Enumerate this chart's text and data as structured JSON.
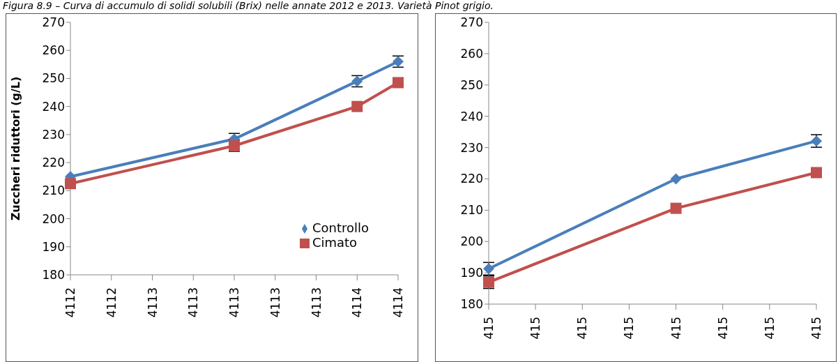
{
  "chart_data": [
    {
      "type": "line",
      "title": "Figura 8.9 – Curva di accumulo di solidi solubili (Brix) nelle annate 2012 e 2013. Varietà Pinot grigio.",
      "ylabel": "Zuccheri riduttori (g/L)",
      "categories": [
        "4112",
        "4112",
        "4113",
        "4113",
        "4113",
        "4113",
        "4113",
        "4114",
        "4114"
      ],
      "ylim": [
        180,
        270
      ],
      "yticks": [
        180,
        190,
        200,
        210,
        220,
        230,
        240,
        250,
        260,
        270
      ],
      "grid": false,
      "legend": "bottom right",
      "series": [
        {
          "name": "Controllo",
          "color": "#4a7ebb",
          "marker": "diamond",
          "values": [
            215,
            null,
            null,
            null,
            228.4,
            null,
            null,
            249,
            256
          ],
          "errors": [
            null,
            null,
            null,
            null,
            2,
            null,
            null,
            2,
            2
          ]
        },
        {
          "name": "Cimato",
          "color": "#c0504d",
          "marker": "square",
          "values": [
            212.5,
            null,
            null,
            null,
            226,
            null,
            null,
            240,
            248.5
          ],
          "errors": [
            null,
            null,
            null,
            null,
            2,
            null,
            null,
            null,
            null
          ]
        }
      ]
    },
    {
      "type": "line",
      "categories": [
        "415",
        "415",
        "415",
        "415",
        "415",
        "415",
        "415",
        "415"
      ],
      "ylim": [
        180,
        270
      ],
      "yticks": [
        180,
        190,
        200,
        210,
        220,
        230,
        240,
        250,
        260,
        270
      ],
      "grid": false,
      "legend": false,
      "series": [
        {
          "color": "#4a7ebb",
          "marker": "diamond",
          "values": [
            191.3,
            null,
            null,
            null,
            220,
            null,
            null,
            232.1
          ],
          "errors": [
            2,
            null,
            null,
            null,
            null,
            null,
            null,
            2
          ]
        },
        {
          "color": "#c0504d",
          "marker": "square",
          "values": [
            187,
            null,
            null,
            null,
            210.6,
            null,
            null,
            222
          ],
          "errors": [
            2,
            null,
            null,
            null,
            null,
            null,
            null,
            null
          ]
        }
      ]
    }
  ]
}
